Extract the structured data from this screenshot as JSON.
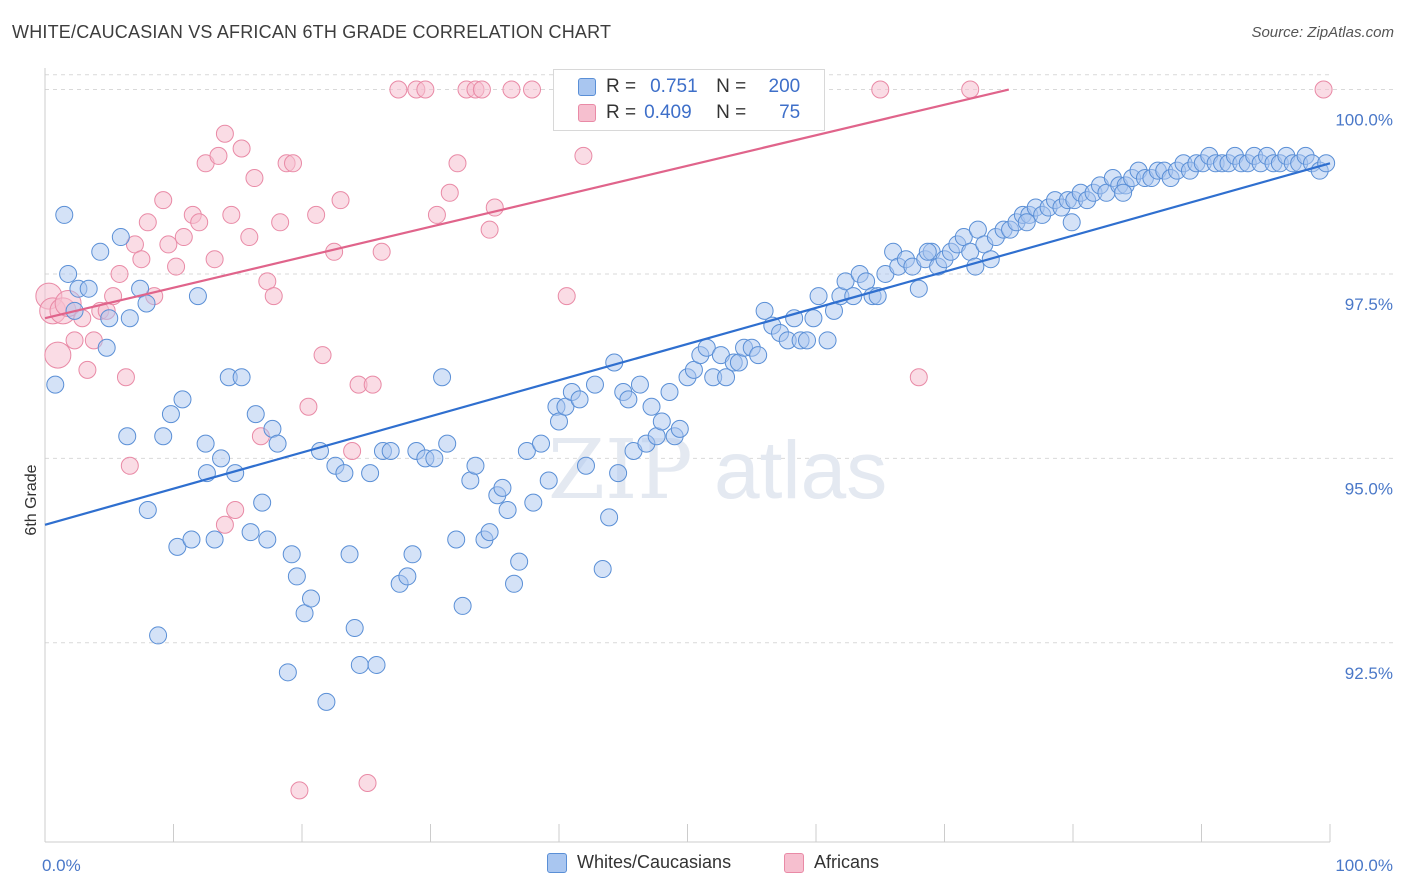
{
  "title": "WHITE/CAUCASIAN VS AFRICAN 6TH GRADE CORRELATION CHART",
  "source": "Source: ZipAtlas.com",
  "watermark": {
    "zip": "ZIP",
    "atlas": "atlas"
  },
  "colors": {
    "blue_fill": "#a9c6f0",
    "blue_stroke": "#5a8fd6",
    "blue_line": "#2f6fcf",
    "pink_fill": "#f6bfcf",
    "pink_stroke": "#e98aa6",
    "pink_line": "#e0648b",
    "tick_text": "#4a78c8",
    "grid": "#d9d9d9"
  },
  "legend": {
    "r_label": "R =",
    "n_label": "N =",
    "blue": {
      "r": "0.751",
      "n": "200"
    },
    "pink": {
      "r": "0.409",
      "n": "75"
    }
  },
  "bottom_legend": {
    "blue": "Whites/Caucasians",
    "pink": "Africans"
  },
  "chart_data": {
    "type": "scatter",
    "title": "WHITE/CAUCASIAN VS AFRICAN 6TH GRADE CORRELATION CHART",
    "xlabel": "",
    "ylabel": "6th Grade",
    "xlim": [
      0,
      100
    ],
    "ylim": [
      89.8,
      100.4
    ],
    "x_tick_labels": [
      "0.0%",
      "100.0%"
    ],
    "y_ticks": [
      92.5,
      95.0,
      97.5,
      100.0
    ],
    "y_tick_labels": [
      "92.5%",
      "95.0%",
      "97.5%",
      "100.0%"
    ],
    "grid": true,
    "legend_position": "top-center",
    "series": [
      {
        "name": "Whites/Caucasians",
        "r": 0.751,
        "n": 200,
        "trend": {
          "x": [
            0,
            100
          ],
          "y": [
            94.1,
            99.0
          ]
        },
        "points": [
          [
            1.5,
            98.3
          ],
          [
            1.8,
            97.5
          ],
          [
            0.8,
            96.0
          ],
          [
            2.6,
            97.3
          ],
          [
            2.3,
            97.0
          ],
          [
            3.4,
            97.3
          ],
          [
            4.3,
            97.8
          ],
          [
            4.8,
            96.5
          ],
          [
            5.0,
            96.9
          ],
          [
            5.9,
            98.0
          ],
          [
            6.6,
            96.9
          ],
          [
            7.4,
            97.3
          ],
          [
            7.9,
            97.1
          ],
          [
            6.4,
            95.3
          ],
          [
            8.0,
            94.3
          ],
          [
            8.8,
            92.6
          ],
          [
            9.2,
            95.3
          ],
          [
            9.8,
            95.6
          ],
          [
            10.3,
            93.8
          ],
          [
            10.7,
            95.8
          ],
          [
            11.4,
            93.9
          ],
          [
            11.9,
            97.2
          ],
          [
            12.5,
            95.2
          ],
          [
            12.6,
            94.8
          ],
          [
            13.2,
            93.9
          ],
          [
            13.7,
            95.0
          ],
          [
            14.3,
            96.1
          ],
          [
            14.8,
            94.8
          ],
          [
            15.3,
            96.1
          ],
          [
            16.0,
            94.0
          ],
          [
            16.4,
            95.6
          ],
          [
            16.9,
            94.4
          ],
          [
            17.3,
            93.9
          ],
          [
            17.7,
            95.4
          ],
          [
            18.1,
            95.2
          ],
          [
            18.9,
            92.1
          ],
          [
            19.2,
            93.7
          ],
          [
            19.6,
            93.4
          ],
          [
            20.2,
            92.9
          ],
          [
            20.7,
            93.1
          ],
          [
            21.4,
            95.1
          ],
          [
            21.9,
            91.7
          ],
          [
            22.6,
            94.9
          ],
          [
            23.3,
            94.8
          ],
          [
            23.7,
            93.7
          ],
          [
            24.1,
            92.7
          ],
          [
            24.5,
            92.2
          ],
          [
            25.3,
            94.8
          ],
          [
            25.8,
            92.2
          ],
          [
            26.3,
            95.1
          ],
          [
            26.9,
            95.1
          ],
          [
            27.6,
            93.3
          ],
          [
            28.2,
            93.4
          ],
          [
            28.6,
            93.7
          ],
          [
            28.9,
            95.1
          ],
          [
            29.6,
            95.0
          ],
          [
            30.3,
            95.0
          ],
          [
            30.9,
            96.1
          ],
          [
            31.3,
            95.2
          ],
          [
            32.0,
            93.9
          ],
          [
            32.5,
            93.0
          ],
          [
            33.1,
            94.7
          ],
          [
            33.5,
            94.9
          ],
          [
            34.2,
            93.9
          ],
          [
            34.6,
            94.0
          ],
          [
            35.2,
            94.5
          ],
          [
            35.6,
            94.6
          ],
          [
            36.0,
            94.3
          ],
          [
            36.5,
            93.3
          ],
          [
            36.9,
            93.6
          ],
          [
            37.5,
            95.1
          ],
          [
            38.0,
            94.4
          ],
          [
            38.6,
            95.2
          ],
          [
            39.2,
            94.7
          ],
          [
            39.8,
            95.7
          ],
          [
            40.0,
            95.5
          ],
          [
            40.5,
            95.7
          ],
          [
            41.0,
            95.9
          ],
          [
            41.6,
            95.8
          ],
          [
            42.1,
            94.9
          ],
          [
            42.8,
            96.0
          ],
          [
            43.4,
            93.5
          ],
          [
            43.9,
            94.2
          ],
          [
            44.3,
            96.3
          ],
          [
            44.6,
            94.8
          ],
          [
            45.0,
            95.9
          ],
          [
            45.4,
            95.8
          ],
          [
            45.8,
            95.1
          ],
          [
            46.3,
            96.0
          ],
          [
            46.8,
            95.2
          ],
          [
            47.2,
            95.7
          ],
          [
            47.6,
            95.3
          ],
          [
            48.0,
            95.5
          ],
          [
            48.6,
            95.9
          ],
          [
            49.0,
            95.3
          ],
          [
            49.4,
            95.4
          ],
          [
            50.0,
            96.1
          ],
          [
            50.5,
            96.2
          ],
          [
            51.0,
            96.4
          ],
          [
            51.5,
            96.5
          ],
          [
            52.0,
            96.1
          ],
          [
            52.6,
            96.4
          ],
          [
            53.0,
            96.1
          ],
          [
            53.6,
            96.3
          ],
          [
            54.0,
            96.3
          ],
          [
            54.4,
            96.5
          ],
          [
            55.0,
            96.5
          ],
          [
            55.5,
            96.4
          ],
          [
            56.0,
            97.0
          ],
          [
            56.6,
            96.8
          ],
          [
            57.2,
            96.7
          ],
          [
            57.8,
            96.6
          ],
          [
            58.3,
            96.9
          ],
          [
            58.8,
            96.6
          ],
          [
            59.3,
            96.6
          ],
          [
            59.8,
            96.9
          ],
          [
            60.2,
            97.2
          ],
          [
            60.9,
            96.6
          ],
          [
            61.4,
            97.0
          ],
          [
            61.9,
            97.2
          ],
          [
            62.3,
            97.4
          ],
          [
            62.9,
            97.2
          ],
          [
            63.4,
            97.5
          ],
          [
            63.9,
            97.4
          ],
          [
            64.4,
            97.2
          ],
          [
            64.8,
            97.2
          ],
          [
            65.4,
            97.5
          ],
          [
            66.0,
            97.8
          ],
          [
            66.4,
            97.6
          ],
          [
            67.0,
            97.7
          ],
          [
            67.5,
            97.6
          ],
          [
            68.0,
            97.3
          ],
          [
            68.5,
            97.7
          ],
          [
            69.0,
            97.8
          ],
          [
            69.5,
            97.6
          ],
          [
            70.0,
            97.7
          ],
          [
            70.5,
            97.8
          ],
          [
            71.0,
            97.9
          ],
          [
            71.5,
            98.0
          ],
          [
            72.0,
            97.8
          ],
          [
            72.6,
            98.1
          ],
          [
            73.1,
            97.9
          ],
          [
            73.6,
            97.7
          ],
          [
            74.0,
            98.0
          ],
          [
            74.6,
            98.1
          ],
          [
            75.1,
            98.1
          ],
          [
            75.6,
            98.2
          ],
          [
            76.1,
            98.3
          ],
          [
            76.6,
            98.3
          ],
          [
            77.1,
            98.4
          ],
          [
            77.6,
            98.3
          ],
          [
            78.1,
            98.4
          ],
          [
            78.6,
            98.5
          ],
          [
            79.1,
            98.4
          ],
          [
            79.6,
            98.5
          ],
          [
            80.1,
            98.5
          ],
          [
            80.6,
            98.6
          ],
          [
            81.1,
            98.5
          ],
          [
            81.6,
            98.6
          ],
          [
            82.1,
            98.7
          ],
          [
            82.6,
            98.6
          ],
          [
            83.1,
            98.8
          ],
          [
            83.6,
            98.7
          ],
          [
            84.1,
            98.7
          ],
          [
            84.6,
            98.8
          ],
          [
            85.1,
            98.9
          ],
          [
            85.6,
            98.8
          ],
          [
            86.1,
            98.8
          ],
          [
            86.6,
            98.9
          ],
          [
            87.1,
            98.9
          ],
          [
            87.6,
            98.8
          ],
          [
            88.1,
            98.9
          ],
          [
            88.6,
            99.0
          ],
          [
            89.1,
            98.9
          ],
          [
            89.6,
            99.0
          ],
          [
            90.1,
            99.0
          ],
          [
            90.6,
            99.1
          ],
          [
            91.1,
            99.0
          ],
          [
            91.6,
            99.0
          ],
          [
            92.1,
            99.0
          ],
          [
            92.6,
            99.1
          ],
          [
            93.1,
            99.0
          ],
          [
            93.6,
            99.0
          ],
          [
            94.1,
            99.1
          ],
          [
            94.6,
            99.0
          ],
          [
            95.1,
            99.1
          ],
          [
            95.6,
            99.0
          ],
          [
            96.1,
            99.0
          ],
          [
            96.6,
            99.1
          ],
          [
            97.1,
            99.0
          ],
          [
            97.6,
            99.0
          ],
          [
            98.1,
            99.1
          ],
          [
            98.6,
            99.0
          ],
          [
            99.2,
            98.9
          ],
          [
            99.7,
            99.0
          ],
          [
            68.7,
            97.8
          ],
          [
            72.4,
            97.6
          ],
          [
            76.4,
            98.2
          ],
          [
            79.9,
            98.2
          ],
          [
            83.9,
            98.6
          ]
        ]
      },
      {
        "name": "Africans",
        "r": 0.409,
        "n": 75,
        "trend": {
          "x": [
            0,
            75
          ],
          "y": [
            96.9,
            100.0
          ]
        },
        "points": [
          [
            0.3,
            97.2
          ],
          [
            0.6,
            97.0
          ],
          [
            1.0,
            96.4
          ],
          [
            1.4,
            97.0
          ],
          [
            1.8,
            97.1
          ],
          [
            2.3,
            96.6
          ],
          [
            2.9,
            96.9
          ],
          [
            3.3,
            96.2
          ],
          [
            3.8,
            96.6
          ],
          [
            4.3,
            97.0
          ],
          [
            4.8,
            97.0
          ],
          [
            5.3,
            97.2
          ],
          [
            5.8,
            97.5
          ],
          [
            6.3,
            96.1
          ],
          [
            6.6,
            94.9
          ],
          [
            7.0,
            97.9
          ],
          [
            7.5,
            97.7
          ],
          [
            8.0,
            98.2
          ],
          [
            8.5,
            97.2
          ],
          [
            9.2,
            98.5
          ],
          [
            9.6,
            97.9
          ],
          [
            10.2,
            97.6
          ],
          [
            10.8,
            98.0
          ],
          [
            11.5,
            98.3
          ],
          [
            12.0,
            98.2
          ],
          [
            12.5,
            99.0
          ],
          [
            13.2,
            97.7
          ],
          [
            13.5,
            99.1
          ],
          [
            14.0,
            99.4
          ],
          [
            14.5,
            98.3
          ],
          [
            14.8,
            94.3
          ],
          [
            15.3,
            99.2
          ],
          [
            15.9,
            98.0
          ],
          [
            16.3,
            98.8
          ],
          [
            16.8,
            95.3
          ],
          [
            17.3,
            97.4
          ],
          [
            17.8,
            97.2
          ],
          [
            18.3,
            98.2
          ],
          [
            18.8,
            99.0
          ],
          [
            19.3,
            99.0
          ],
          [
            19.8,
            90.5
          ],
          [
            20.5,
            95.7
          ],
          [
            21.1,
            98.3
          ],
          [
            21.6,
            96.4
          ],
          [
            22.5,
            97.8
          ],
          [
            23.0,
            98.5
          ],
          [
            23.9,
            95.1
          ],
          [
            24.4,
            96.0
          ],
          [
            25.1,
            90.6
          ],
          [
            25.5,
            96.0
          ],
          [
            26.2,
            97.8
          ],
          [
            27.5,
            100.0
          ],
          [
            28.9,
            100.0
          ],
          [
            29.6,
            100.0
          ],
          [
            30.5,
            98.3
          ],
          [
            31.5,
            98.6
          ],
          [
            32.1,
            99.0
          ],
          [
            32.8,
            100.0
          ],
          [
            33.5,
            100.0
          ],
          [
            34.0,
            100.0
          ],
          [
            34.6,
            98.1
          ],
          [
            35.0,
            98.4
          ],
          [
            36.3,
            100.0
          ],
          [
            37.9,
            100.0
          ],
          [
            40.3,
            100.0
          ],
          [
            40.6,
            97.2
          ],
          [
            41.9,
            99.1
          ],
          [
            45.9,
            100.0
          ],
          [
            51.0,
            100.0
          ],
          [
            53.1,
            100.0
          ],
          [
            14.0,
            94.1
          ],
          [
            65.0,
            100.0
          ],
          [
            68.0,
            96.1
          ],
          [
            72.0,
            100.0
          ],
          [
            99.5,
            100.0
          ]
        ]
      }
    ]
  }
}
